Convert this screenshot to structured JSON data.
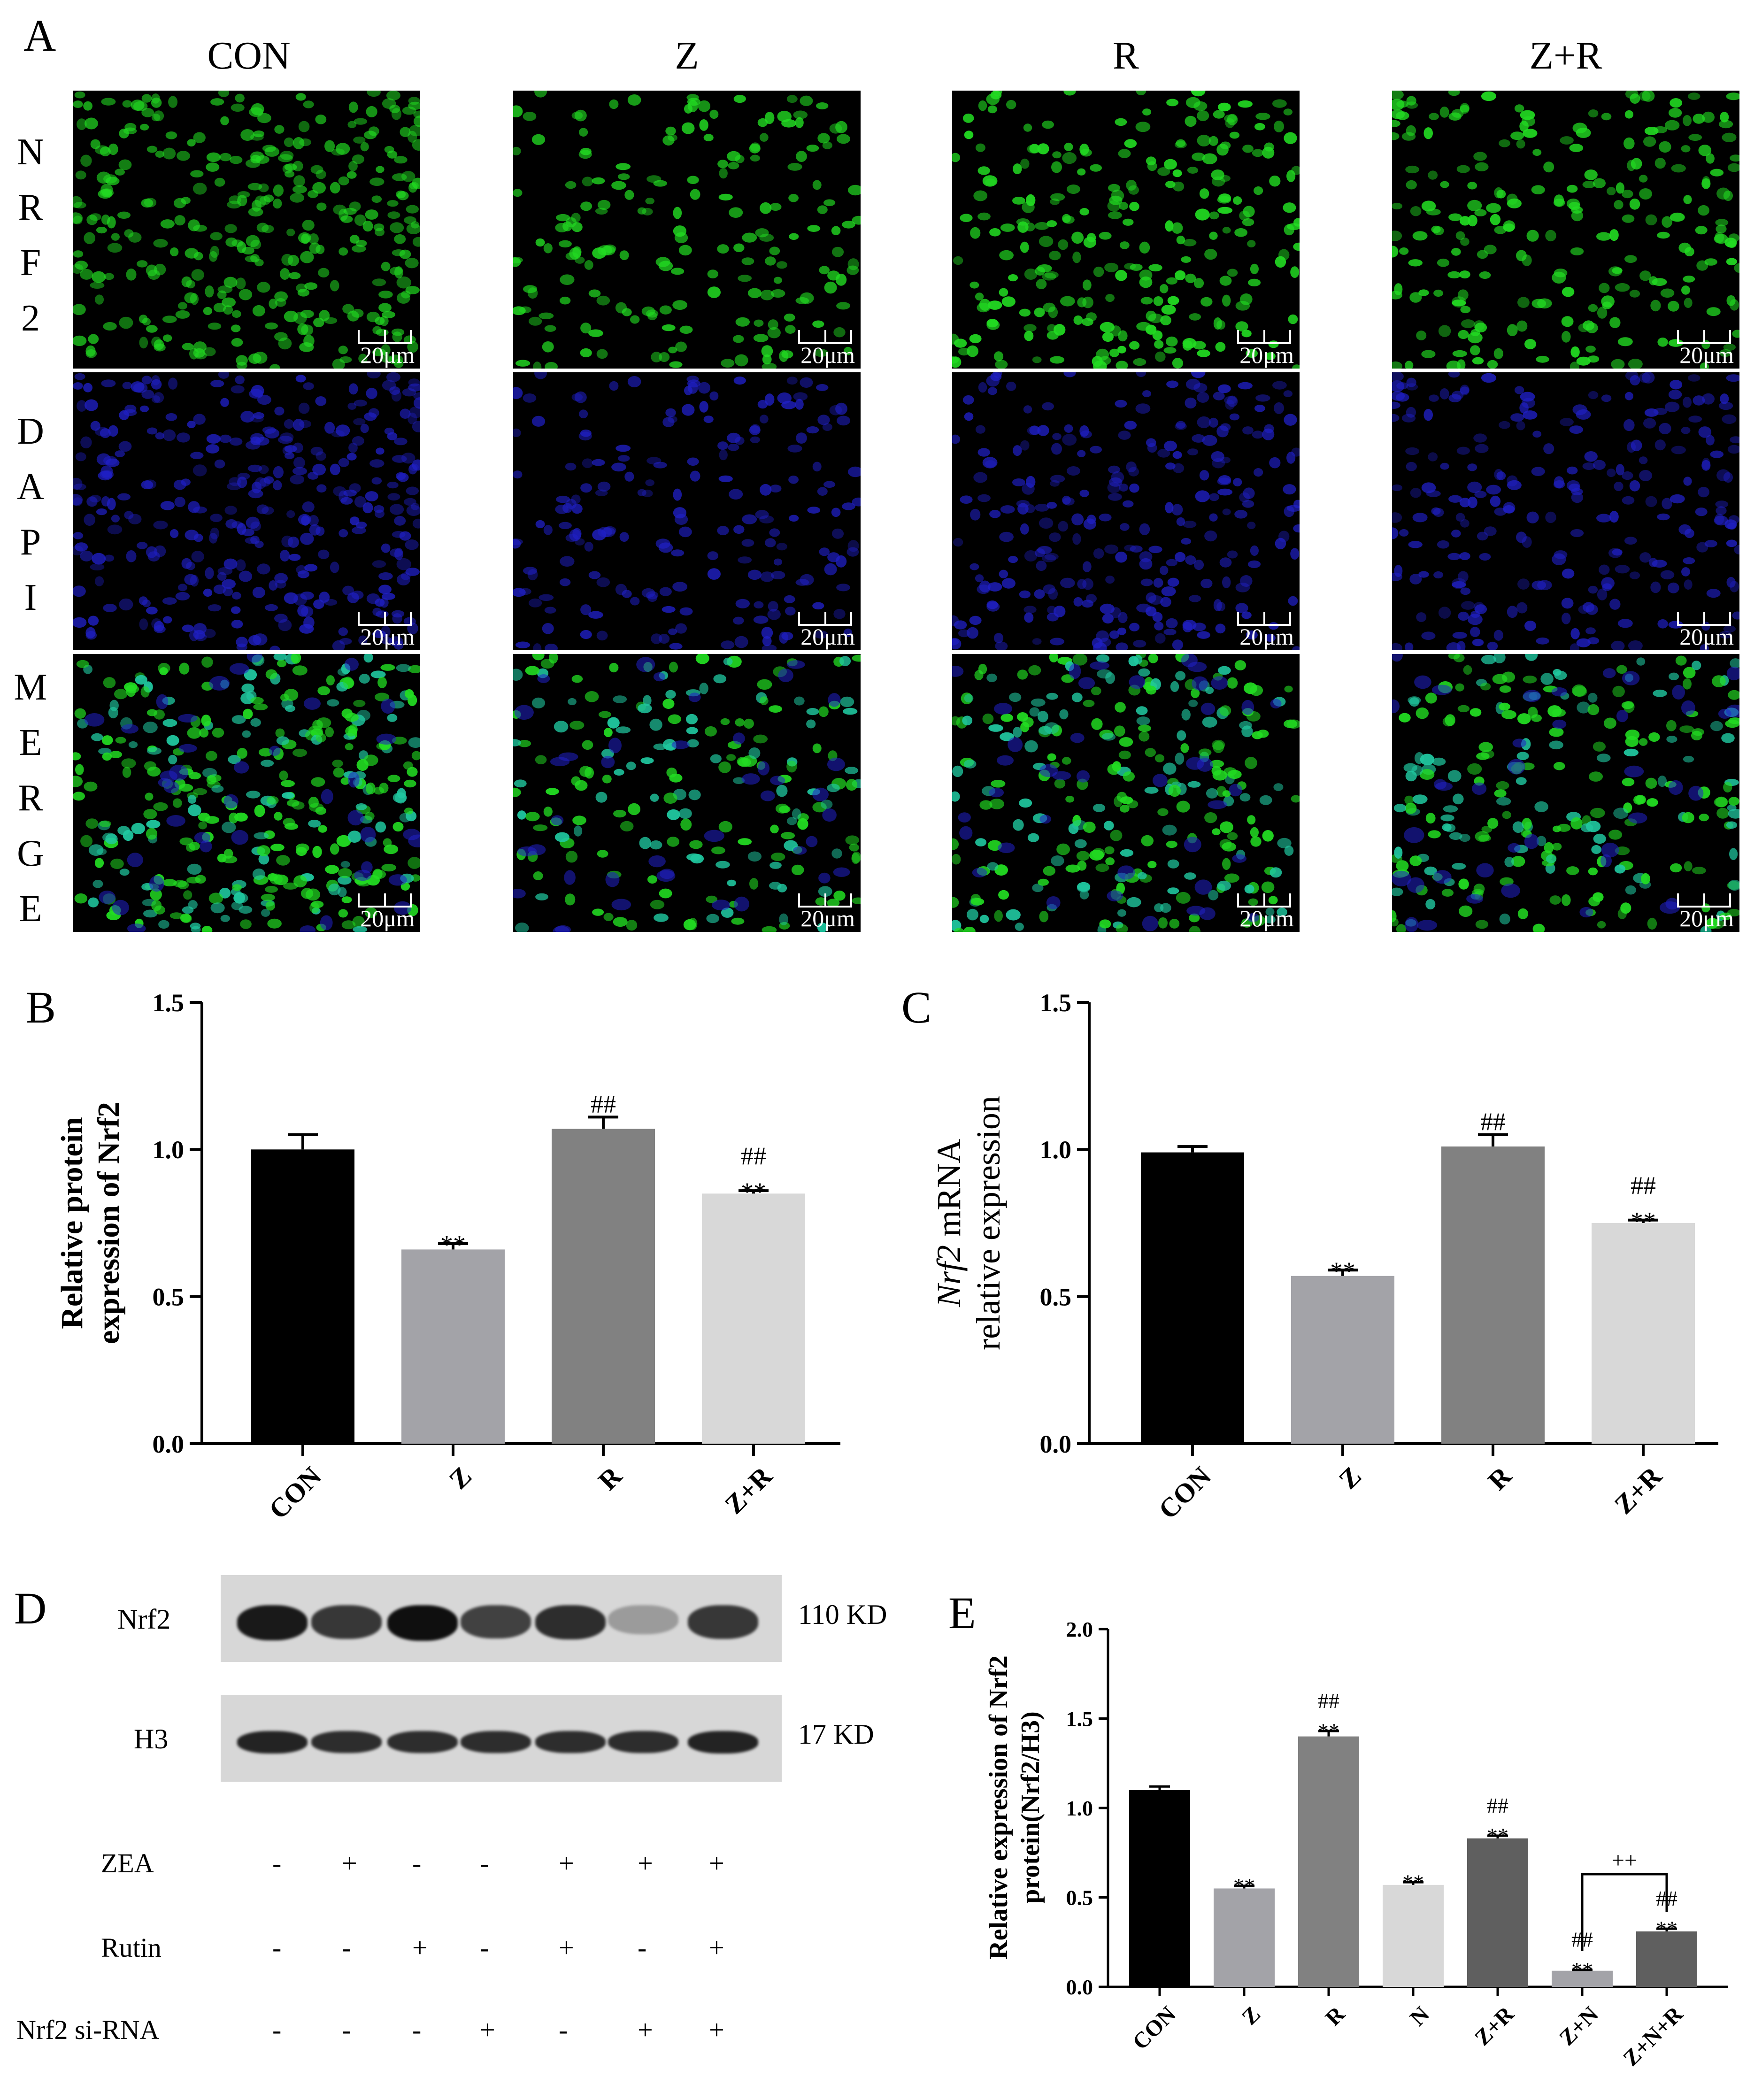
{
  "panel_letters": {
    "a": "A",
    "b": "B",
    "c": "C",
    "d": "D",
    "e": "E"
  },
  "panel_a": {
    "columns": [
      "CON",
      "Z",
      "R",
      "Z+R"
    ],
    "rows": [
      {
        "letters": [
          "N",
          "R",
          "F",
          "2"
        ],
        "channel": "nrf2"
      },
      {
        "letters": [
          "D",
          "A",
          "P",
          "I"
        ],
        "channel": "dapi"
      },
      {
        "letters": [
          "M",
          "E",
          "R",
          "G",
          "E"
        ],
        "channel": "merge"
      }
    ],
    "scale_label": "20μm",
    "colors": {
      "nrf2": "#22dd22",
      "dapi": "#2020c8",
      "merge_cyan": "#20c8a0",
      "background": "#000000"
    }
  },
  "chart_data": [
    {
      "panel": "B",
      "type": "bar",
      "categories": [
        "CON",
        "Z",
        "R",
        "Z+R"
      ],
      "values": [
        1.0,
        0.66,
        1.07,
        0.85
      ],
      "errors": [
        0.05,
        0.02,
        0.04,
        0.01
      ],
      "colors": [
        "#000000",
        "#a3a3a8",
        "#818181",
        "#d8d8d8"
      ],
      "annotations": [
        [
          "",
          ""
        ],
        [
          "**",
          ""
        ],
        [
          "##",
          ""
        ],
        [
          "**",
          "##"
        ]
      ],
      "ylabel": [
        "Relative protein",
        "expression of Nrf2"
      ],
      "ylim": [
        0,
        1.5
      ],
      "yticks": [
        "0.0",
        "0.5",
        "1.0",
        "1.5"
      ],
      "ytick_values": [
        0,
        0.5,
        1.0,
        1.5
      ]
    },
    {
      "panel": "C",
      "type": "bar",
      "categories": [
        "CON",
        "Z",
        "R",
        "Z+R"
      ],
      "values": [
        0.99,
        0.57,
        1.01,
        0.75
      ],
      "errors": [
        0.02,
        0.02,
        0.04,
        0.01
      ],
      "colors": [
        "#000000",
        "#a3a3a8",
        "#818181",
        "#d8d8d8"
      ],
      "annotations": [
        [
          "",
          ""
        ],
        [
          "**",
          ""
        ],
        [
          "##",
          ""
        ],
        [
          "**",
          "##"
        ]
      ],
      "ylabel_italic": "Nrf2",
      "ylabel": [
        " mRNA",
        "relative expression"
      ],
      "ylim": [
        0,
        1.5
      ],
      "yticks": [
        "0.0",
        "0.5",
        "1.0",
        "1.5"
      ],
      "ytick_values": [
        0,
        0.5,
        1.0,
        1.5
      ]
    },
    {
      "panel": "E",
      "type": "bar",
      "categories": [
        "CON",
        "Z",
        "R",
        "N",
        "Z+R",
        "Z+N",
        "Z+N+R"
      ],
      "values": [
        1.1,
        0.55,
        1.4,
        0.57,
        0.83,
        0.09,
        0.31
      ],
      "errors": [
        0.02,
        0.015,
        0.03,
        0.015,
        0.015,
        0.005,
        0.015
      ],
      "colors": [
        "#000000",
        "#a3a3a8",
        "#818181",
        "#d8d8d8",
        "#5f5f5f",
        "#a3a3a8",
        "#5f5f5f"
      ],
      "annotations": [
        [
          "",
          ""
        ],
        [
          "**",
          ""
        ],
        [
          "**",
          "##"
        ],
        [
          "**",
          ""
        ],
        [
          "**",
          "##"
        ],
        [
          "**",
          "##"
        ],
        [
          "**",
          "##"
        ]
      ],
      "bracket": {
        "from": 5,
        "to": 6,
        "label": "++"
      },
      "ylabel": [
        "Relative expression of Nrf2",
        "protein(Nrf2/H3)"
      ],
      "ylim": [
        0,
        2.0
      ],
      "yticks": [
        "0.0",
        "0.5",
        "1.0",
        "1.5",
        "2.0"
      ],
      "ytick_values": [
        0,
        0.5,
        1.0,
        1.5,
        2.0
      ]
    }
  ],
  "panel_d": {
    "blots": [
      {
        "label": "Nrf2",
        "size": "110 KD",
        "intensities": [
          0.95,
          0.8,
          1.0,
          0.75,
          0.85,
          0.3,
          0.8
        ]
      },
      {
        "label": "H3",
        "size": "17 KD",
        "intensities": [
          0.9,
          0.85,
          0.85,
          0.85,
          0.85,
          0.85,
          0.9
        ]
      }
    ],
    "treatments": [
      {
        "label": "ZEA",
        "signs": [
          "-",
          "+",
          "-",
          "-",
          "+",
          "+",
          "+"
        ]
      },
      {
        "label": "Rutin",
        "signs": [
          "-",
          "-",
          "+",
          "-",
          "+",
          "-",
          "+"
        ]
      },
      {
        "label": "Nrf2 si-RNA",
        "signs": [
          "-",
          "-",
          "-",
          "+",
          "-",
          "+",
          "+"
        ]
      }
    ]
  }
}
